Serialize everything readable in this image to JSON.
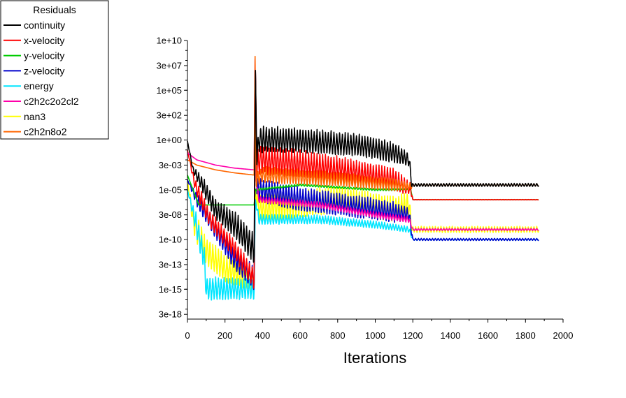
{
  "chart_data": {
    "type": "line",
    "title": "",
    "xlabel": "Iterations",
    "ylabel": "",
    "yscale": "log",
    "xlim": [
      0,
      2000
    ],
    "ylim": [
      1e-18,
      10000000000.0
    ],
    "xticks": [
      0,
      200,
      400,
      600,
      800,
      1000,
      1200,
      1400,
      1600,
      1800,
      2000
    ],
    "yticks": [
      {
        "value": 10000000000.0,
        "label": "1e+10"
      },
      {
        "value": 30000000.0,
        "label": "3e+07"
      },
      {
        "value": 100000.0,
        "label": "1e+05"
      },
      {
        "value": 300.0,
        "label": "3e+02"
      },
      {
        "value": 1,
        "label": "1e+00"
      },
      {
        "value": 0.003,
        "label": "3e-03"
      },
      {
        "value": 1e-05,
        "label": "1e-05"
      },
      {
        "value": 3e-08,
        "label": "3e-08"
      },
      {
        "value": 1e-10,
        "label": "1e-10"
      },
      {
        "value": 3e-13,
        "label": "3e-13"
      },
      {
        "value": 1e-15,
        "label": "1e-15"
      },
      {
        "value": 3e-18,
        "label": "3e-18"
      }
    ],
    "legend": {
      "title": "Residuals",
      "position": "top-left"
    },
    "series": [
      {
        "name": "continuity",
        "color": "#000000",
        "anchors": [
          [
            0,
            0.8
          ],
          [
            30,
            0.001
          ],
          [
            80,
            3e-05
          ],
          [
            150,
            1e-07
          ],
          [
            250,
            3e-09
          ],
          [
            355,
            1e-11
          ],
          [
            362,
            10000000.0
          ],
          [
            370,
            0.01
          ],
          [
            380,
            1.0
          ],
          [
            600,
            0.8
          ],
          [
            900,
            0.3
          ],
          [
            1100,
            0.05
          ],
          [
            1180,
            0.01
          ],
          [
            1195,
            3e-05
          ],
          [
            1870,
            3e-05
          ]
        ],
        "osc": [
          [
            0,
            0.0
          ],
          [
            80,
            0.8
          ],
          [
            355,
            1.5
          ],
          [
            362,
            0.0
          ],
          [
            370,
            1.3
          ],
          [
            1100,
            1.0
          ],
          [
            1190,
            0.6
          ],
          [
            1200,
            0.15
          ],
          [
            1870,
            0.15
          ]
        ]
      },
      {
        "name": "x-velocity",
        "color": "#ff0000",
        "anchors": [
          [
            0,
            0.1
          ],
          [
            40,
            3e-05
          ],
          [
            120,
            1e-08
          ],
          [
            250,
            1e-11
          ],
          [
            355,
            1e-14
          ],
          [
            362,
            10000000.0
          ],
          [
            370,
            0.001
          ],
          [
            380,
            0.01
          ],
          [
            800,
            0.001
          ],
          [
            1100,
            0.0001
          ],
          [
            1190,
            1e-05
          ],
          [
            1200,
            1e-06
          ],
          [
            1870,
            1e-06
          ]
        ],
        "osc": [
          [
            0,
            0.0
          ],
          [
            60,
            0.8
          ],
          [
            355,
            1.0
          ],
          [
            362,
            0.0
          ],
          [
            370,
            1.5
          ],
          [
            1100,
            1.1
          ],
          [
            1190,
            0.6
          ],
          [
            1200,
            0.02
          ],
          [
            1870,
            0.02
          ]
        ]
      },
      {
        "name": "y-velocity",
        "color": "#00cc00",
        "anchors": [
          [
            0,
            0.0003
          ],
          [
            60,
            3e-07
          ],
          [
            355,
            3e-07
          ],
          [
            362,
            1e-05
          ],
          [
            600,
            3e-05
          ],
          [
            1000,
            1e-05
          ],
          [
            1190,
            1e-05
          ],
          [
            1200,
            1e-06
          ],
          [
            1870,
            1e-06
          ]
        ],
        "osc": [
          [
            0,
            0.0
          ],
          [
            355,
            0.0
          ],
          [
            362,
            0.1
          ],
          [
            1190,
            0.1
          ],
          [
            1200,
            0.01
          ],
          [
            1870,
            0.01
          ]
        ]
      },
      {
        "name": "z-velocity",
        "color": "#0000cc",
        "anchors": [
          [
            0,
            0.0001
          ],
          [
            50,
            1e-06
          ],
          [
            150,
            1e-09
          ],
          [
            250,
            1e-12
          ],
          [
            355,
            1e-14
          ],
          [
            362,
            10000000.0
          ],
          [
            370,
            1e-05
          ],
          [
            600,
            1e-06
          ],
          [
            1000,
            1e-07
          ],
          [
            1180,
            3e-08
          ],
          [
            1200,
            1e-10
          ],
          [
            1870,
            1e-10
          ]
        ],
        "osc": [
          [
            0,
            0.0
          ],
          [
            60,
            0.8
          ],
          [
            355,
            1.2
          ],
          [
            362,
            0.0
          ],
          [
            370,
            1.2
          ],
          [
            1100,
            1.0
          ],
          [
            1190,
            0.6
          ],
          [
            1200,
            0.1
          ],
          [
            1870,
            0.1
          ]
        ]
      },
      {
        "name": "energy",
        "color": "#00e5ff",
        "anchors": [
          [
            0,
            1e-05
          ],
          [
            40,
            1e-08
          ],
          [
            90,
            1e-12
          ],
          [
            100,
            1e-15
          ],
          [
            355,
            1e-15
          ],
          [
            362,
            1e-06
          ],
          [
            380,
            1e-08
          ],
          [
            700,
            1e-08
          ],
          [
            1000,
            3e-09
          ],
          [
            1180,
            1e-09
          ],
          [
            1200,
            1e-10
          ],
          [
            1870,
            1e-10
          ]
        ],
        "osc": [
          [
            0,
            0.0
          ],
          [
            50,
            1.2
          ],
          [
            355,
            1.0
          ],
          [
            362,
            0.0
          ],
          [
            370,
            0.5
          ],
          [
            1180,
            0.3
          ],
          [
            1200,
            0.1
          ],
          [
            1870,
            0.1
          ]
        ]
      },
      {
        "name": "c2h2c2o2cl2",
        "color": "#ff00aa",
        "anchors": [
          [
            0,
            0.05
          ],
          [
            50,
            0.01
          ],
          [
            150,
            0.003
          ],
          [
            250,
            0.0015
          ],
          [
            355,
            0.001
          ],
          [
            360,
            100000000.0
          ],
          [
            365,
            0.0001
          ],
          [
            380,
            1e-06
          ],
          [
            700,
            3e-07
          ],
          [
            1000,
            3e-08
          ],
          [
            1180,
            1e-08
          ],
          [
            1200,
            1e-09
          ],
          [
            1870,
            1e-09
          ]
        ],
        "osc": [
          [
            0,
            0.0
          ],
          [
            355,
            0.0
          ],
          [
            365,
            0.3
          ],
          [
            1180,
            0.3
          ],
          [
            1200,
            0.1
          ],
          [
            1870,
            0.1
          ]
        ]
      },
      {
        "name": "nan3",
        "color": "#ffff00",
        "anchors": [
          [
            0,
            0.0001
          ],
          [
            30,
            1e-08
          ],
          [
            90,
            1e-11
          ],
          [
            200,
            1e-13
          ],
          [
            355,
            1e-14
          ],
          [
            362,
            1e-05
          ],
          [
            380,
            1e-07
          ],
          [
            800,
            1e-06
          ],
          [
            1100,
            1e-07
          ],
          [
            1180,
            3e-07
          ],
          [
            1195,
            1e-09
          ],
          [
            1870,
            1e-09
          ]
        ],
        "osc": [
          [
            0,
            0.0
          ],
          [
            40,
            1.4
          ],
          [
            355,
            1.3
          ],
          [
            362,
            0.0
          ],
          [
            370,
            1.4
          ],
          [
            1180,
            1.2
          ],
          [
            1195,
            0.3
          ],
          [
            1870,
            0.3
          ]
        ]
      },
      {
        "name": "c2h2n8o2",
        "color": "#ff6600",
        "anchors": [
          [
            0,
            0.01
          ],
          [
            50,
            0.003
          ],
          [
            150,
            0.001
          ],
          [
            250,
            0.0005
          ],
          [
            355,
            0.0003
          ],
          [
            360,
            100000000.0
          ],
          [
            366,
            0.0001
          ],
          [
            400,
            0.0003
          ],
          [
            800,
            0.0001
          ],
          [
            1100,
            3e-05
          ],
          [
            1190,
            2e-05
          ],
          [
            1200,
            3e-05
          ],
          [
            1870,
            3e-05
          ]
        ],
        "osc": [
          [
            0,
            0.0
          ],
          [
            355,
            0.0
          ],
          [
            366,
            0.8
          ],
          [
            1100,
            0.6
          ],
          [
            1190,
            0.3
          ],
          [
            1200,
            0.12
          ],
          [
            1870,
            0.12
          ]
        ]
      }
    ]
  }
}
